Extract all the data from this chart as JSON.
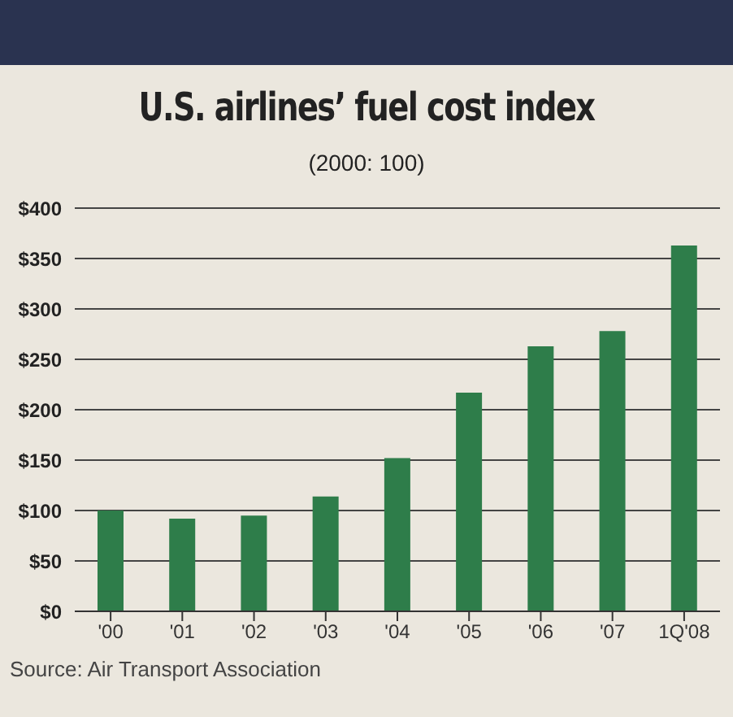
{
  "chart_data": {
    "type": "bar",
    "title": "U.S. airlines’ fuel cost index",
    "subtitle": "(2000: 100)",
    "categories": [
      "'00",
      "'01",
      "'02",
      "'03",
      "'04",
      "'05",
      "'06",
      "'07",
      "1Q'08"
    ],
    "values": [
      100,
      92,
      95,
      114,
      152,
      217,
      263,
      278,
      363
    ],
    "color": "#2e7d4a",
    "ylim": [
      0,
      400
    ],
    "yticks": [
      {
        "value": 0,
        "label": "$0"
      },
      {
        "value": 50,
        "label": "$50"
      },
      {
        "value": 100,
        "label": "$100"
      },
      {
        "value": 150,
        "label": "$150"
      },
      {
        "value": 200,
        "label": "$200"
      },
      {
        "value": 250,
        "label": "$250"
      },
      {
        "value": 300,
        "label": "$300"
      },
      {
        "value": 350,
        "label": "$350"
      },
      {
        "value": 400,
        "label": "$400"
      }
    ],
    "grid": "y",
    "annotations": [
      "Source: Air Transport Association"
    ]
  }
}
